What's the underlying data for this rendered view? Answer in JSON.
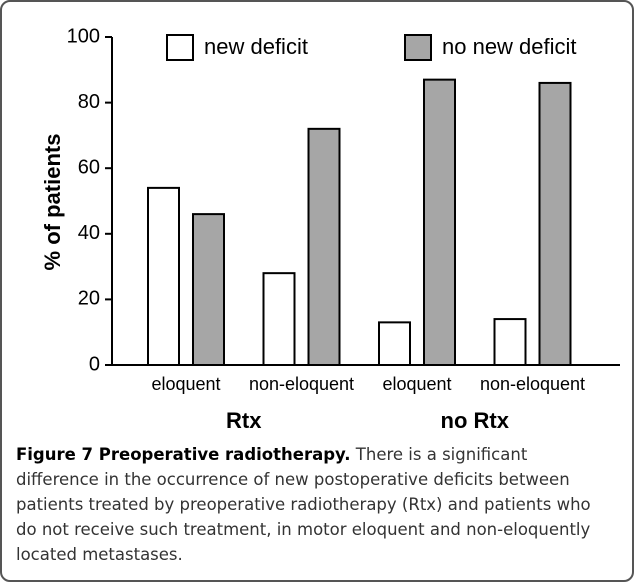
{
  "chart_data": {
    "type": "bar",
    "y_label": "% of patients",
    "categories": [
      "eloquent",
      "non-eloquent",
      "eloquent",
      "non-eloquent"
    ],
    "groups": [
      "Rtx",
      "no Rtx"
    ],
    "series": [
      {
        "name": "new deficit",
        "color": "#ffffff",
        "values": [
          54,
          28,
          13,
          14
        ]
      },
      {
        "name": "no new deficit",
        "color": "#a6a6a6",
        "values": [
          46,
          72,
          87,
          86
        ]
      }
    ],
    "ylim": [
      0,
      100
    ],
    "yticks": [
      0,
      20,
      40,
      60,
      80,
      100
    ]
  },
  "caption": {
    "label": "Figure 7 Preoperative radiotherapy.",
    "lines": [
      "There is a significant",
      "difference in the occurrence of new postoperative deficits between",
      "patients treated by preoperative radiotherapy (Rtx) and patients who",
      "do not receive such treatment, in motor eloquent and non-eloquently",
      "located metastases."
    ]
  }
}
